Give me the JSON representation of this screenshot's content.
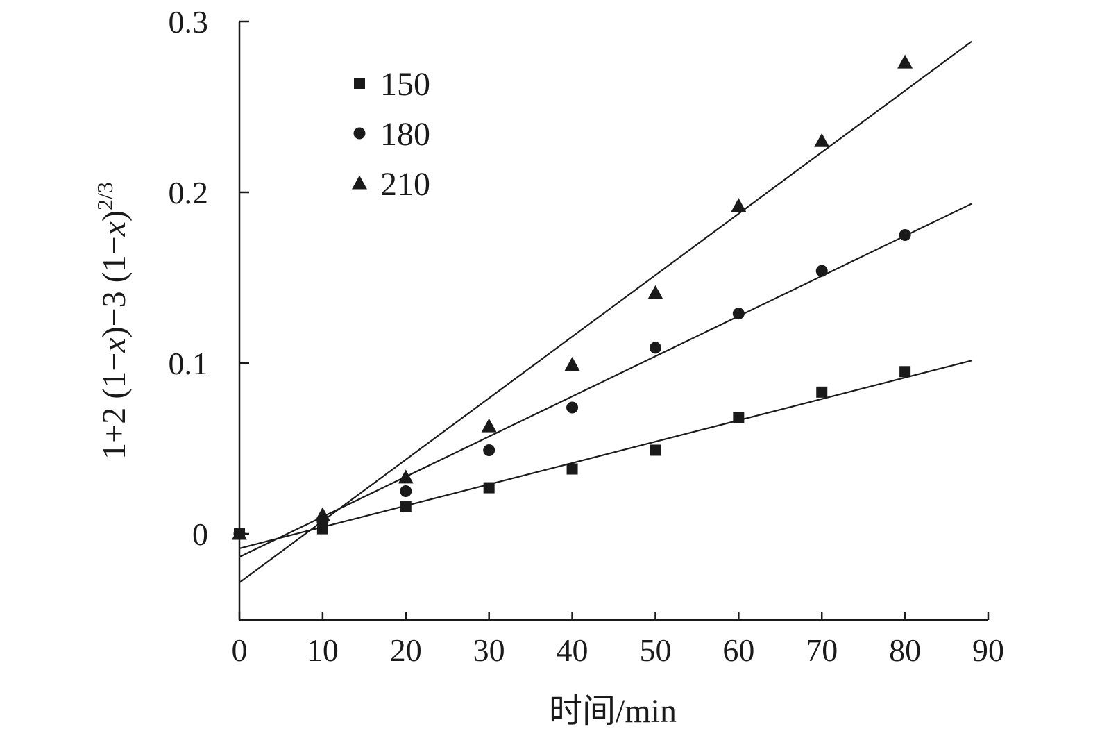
{
  "chart_data": {
    "type": "scatter",
    "title": "",
    "xlabel": "时间/min",
    "ylabel": {
      "base": "1+2 (1−",
      "var1": "x",
      "mid": ")−3 (1−",
      "var2": "x",
      "close": ")",
      "exponent": "2/3"
    },
    "xlim": [
      0,
      90
    ],
    "ylim": [
      -0.05,
      0.3
    ],
    "x_ticks": [
      0,
      10,
      20,
      30,
      40,
      50,
      60,
      70,
      80,
      90
    ],
    "x_tick_labels": [
      "0",
      "10",
      "20",
      "30",
      "40",
      "50",
      "60",
      "70",
      "80",
      "90"
    ],
    "y_ticks": [
      0,
      0.1,
      0.2,
      0.3
    ],
    "y_tick_labels": [
      "0",
      "0.1",
      "0.2",
      "0.3"
    ],
    "grid": false,
    "legend_position": "top-left",
    "series": [
      {
        "name": "150",
        "marker": "square",
        "x": [
          0,
          10,
          20,
          30,
          40,
          50,
          60,
          70,
          80
        ],
        "y": [
          0,
          0.003,
          0.016,
          0.027,
          0.038,
          0.049,
          0.068,
          0.083,
          0.095
        ],
        "fit": {
          "intercept": -0.0085,
          "slope": 0.00125
        }
      },
      {
        "name": "180",
        "marker": "circle",
        "x": [
          0,
          10,
          20,
          30,
          40,
          50,
          60,
          70,
          80
        ],
        "y": [
          0,
          0.007,
          0.025,
          0.049,
          0.074,
          0.109,
          0.129,
          0.154,
          0.175
        ],
        "fit": {
          "intercept": -0.0135,
          "slope": 0.00235
        }
      },
      {
        "name": "210",
        "marker": "triangle",
        "x": [
          0,
          10,
          20,
          30,
          40,
          50,
          60,
          70,
          80
        ],
        "y": [
          0,
          0.011,
          0.033,
          0.063,
          0.099,
          0.141,
          0.192,
          0.23,
          0.276
        ],
        "fit": {
          "intercept": -0.0285,
          "slope": 0.0036
        }
      }
    ],
    "colors": {
      "ink": "#1a1a1a"
    }
  }
}
